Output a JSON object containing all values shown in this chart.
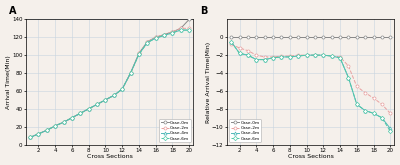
{
  "cross_sections": [
    1,
    2,
    3,
    4,
    5,
    6,
    7,
    8,
    9,
    10,
    11,
    12,
    13,
    14,
    15,
    16,
    17,
    18,
    19,
    20
  ],
  "arrival_case0": [
    8,
    12,
    16,
    21,
    25,
    30,
    35,
    40,
    45,
    50,
    55,
    62,
    80,
    102,
    115,
    120,
    123,
    126,
    130,
    140
  ],
  "arrival_case2": [
    8,
    12,
    16,
    21,
    25,
    30,
    35,
    40,
    45,
    50,
    55,
    62,
    80,
    102,
    115,
    120,
    123,
    126,
    130,
    130
  ],
  "arrival_case4": [
    8,
    12,
    16,
    21,
    25,
    30,
    35,
    40,
    45,
    50,
    55,
    62,
    80,
    101,
    114,
    119,
    122,
    125,
    128,
    128
  ],
  "arrival_case6": [
    8,
    12,
    16,
    21,
    25,
    30,
    35,
    40,
    45,
    50,
    55,
    62,
    80,
    101,
    114,
    119,
    122,
    125,
    128,
    128
  ],
  "relative_case0": [
    0,
    0,
    0,
    0,
    0,
    0,
    0,
    0,
    0,
    0,
    0,
    0,
    0,
    0,
    0,
    0,
    0,
    0,
    0,
    0
  ],
  "relative_case2": [
    -0.8,
    -1.2,
    -1.5,
    -2.0,
    -2.2,
    -2.2,
    -2.1,
    -2.1,
    -2.0,
    -2.0,
    -2.0,
    -2.0,
    -2.1,
    -2.2,
    -3.2,
    -5.5,
    -6.2,
    -6.8,
    -7.5,
    -8.5
  ],
  "relative_case4": [
    -0.5,
    -1.8,
    -2.0,
    -2.5,
    -2.5,
    -2.3,
    -2.2,
    -2.2,
    -2.1,
    -2.0,
    -2.0,
    -2.0,
    -2.1,
    -2.3,
    -4.5,
    -7.5,
    -8.2,
    -8.5,
    -9.0,
    -10.2
  ],
  "relative_case6": [
    -0.5,
    -1.8,
    -2.0,
    -2.5,
    -2.5,
    -2.3,
    -2.2,
    -2.2,
    -2.1,
    -2.0,
    -2.0,
    -2.0,
    -2.1,
    -2.3,
    -4.5,
    -7.5,
    -8.2,
    -8.5,
    -9.0,
    -10.5
  ],
  "color_case0": "#888888",
  "color_case2": "#e8a0a0",
  "color_case4": "#50b8b8",
  "color_case6": "#50c8a8",
  "bg_color": "#f5f0eb",
  "grid_color": "#c8d4e0",
  "title_A": "A",
  "title_B": "B",
  "xlabel": "Cross Sections",
  "ylabel_A": "Arrival Time(Min)",
  "ylabel_B": "Relative Arrival Time(Min)",
  "xlim_A": [
    0.5,
    20.5
  ],
  "xlim_B": [
    0.5,
    20.5
  ],
  "ylim_A": [
    0,
    140
  ],
  "ylim_B": [
    -12,
    2
  ],
  "yticks_A": [
    0,
    20,
    40,
    60,
    80,
    100,
    120,
    140
  ],
  "yticks_B": [
    -12,
    -10,
    -8,
    -6,
    -4,
    -2,
    0
  ],
  "xticks": [
    2,
    4,
    6,
    8,
    10,
    12,
    14,
    16,
    18,
    20
  ],
  "legend_labels": [
    "Case-0m",
    "Case-2m",
    "Case-4m",
    "Case-6m"
  ]
}
